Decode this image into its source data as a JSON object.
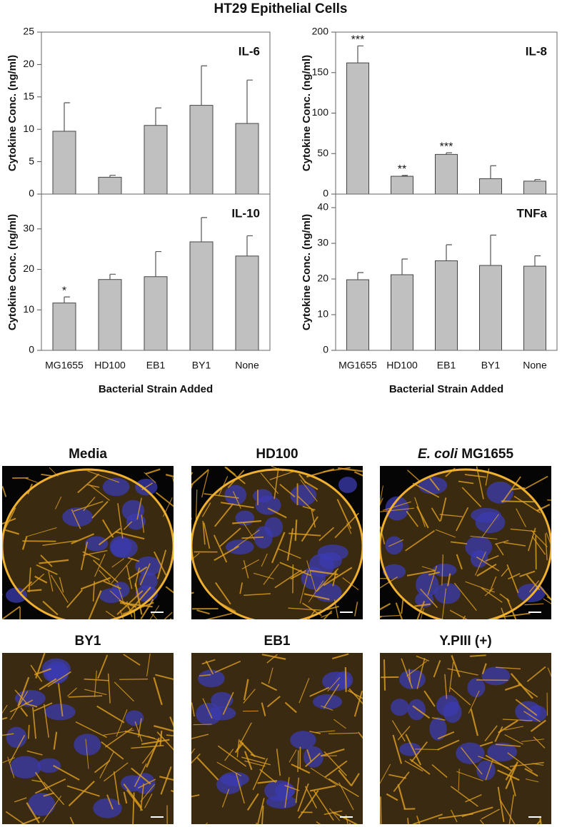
{
  "title": "HT29 Epithelial Cells",
  "chart_data": [
    {
      "type": "bar",
      "label": "IL-6",
      "ylabel": "Cytokine Conc. (ng/ml)",
      "color": "#c0c0c0",
      "values": [
        9.7,
        2.6,
        10.6,
        13.7,
        10.9
      ],
      "errors": [
        4.4,
        0.3,
        2.7,
        6.1,
        6.7
      ],
      "ylim": [
        0,
        25
      ],
      "yticks": [
        0,
        5,
        10,
        15,
        20,
        25
      ]
    },
    {
      "type": "bar",
      "label": "IL-8",
      "ylabel": "Cytokine Conc. (ng/ml)",
      "color": "#c0c0c0",
      "values": [
        162,
        22,
        49,
        19,
        16
      ],
      "errors": [
        21,
        1,
        2,
        16,
        2
      ],
      "significance": [
        "***",
        "**",
        "***",
        null,
        null
      ],
      "ylim": [
        0,
        200
      ],
      "yticks": [
        0,
        50,
        100,
        150,
        200
      ]
    },
    {
      "type": "bar",
      "label": "IL-10",
      "ylabel": "Cytokine Conc. (ng/ml)",
      "xlabel": "Bacterial Strain Added",
      "color": "#c0c0c0",
      "categories": [
        "MG1655",
        "HD100",
        "EB1",
        "BY1",
        "None"
      ],
      "values": [
        11.7,
        17.5,
        18.2,
        26.8,
        23.3
      ],
      "errors": [
        1.5,
        1.3,
        6.2,
        6,
        5
      ],
      "significance": [
        "*",
        null,
        null,
        null,
        null
      ],
      "ylim": [
        0,
        38.6
      ],
      "yticks": [
        0,
        10,
        20,
        30
      ]
    },
    {
      "type": "bar",
      "label": "TNFa",
      "ylabel": "Cytokine Conc. (ng/ml)",
      "xlabel": "Bacterial Strain Added",
      "color": "#c0c0c0",
      "categories": [
        "MG1655",
        "HD100",
        "EB1",
        "BY1",
        "None"
      ],
      "values": [
        19.8,
        21.2,
        25.1,
        23.8,
        23.6
      ],
      "errors": [
        2,
        4.4,
        4.5,
        8.5,
        2.9
      ],
      "ylim": [
        0,
        43.8
      ],
      "yticks": [
        0,
        10,
        20,
        30,
        40
      ]
    }
  ],
  "images": [
    {
      "label": "Media"
    },
    {
      "label": "HD100"
    },
    {
      "label_italic": "E. coli",
      "label": "MG1655"
    },
    {
      "label": "BY1"
    },
    {
      "label": "EB1"
    },
    {
      "label": "Y.PIII (+)"
    }
  ]
}
